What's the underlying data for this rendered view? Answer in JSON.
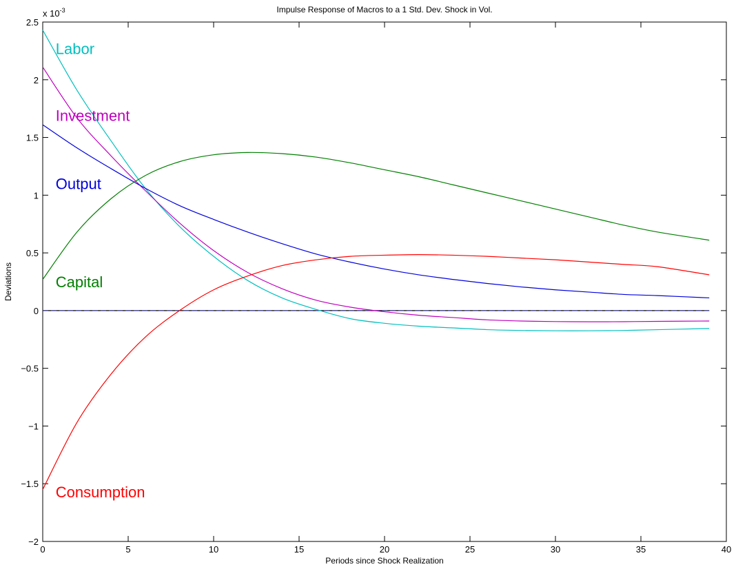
{
  "chart_data": {
    "type": "line",
    "title": "Impulse Response of Macros  to a 1 Std. Dev. Shock in Vol.",
    "xlabel": "Periods since Shock Realization",
    "ylabel": "Deviations",
    "y_exponent_label": "x 10",
    "y_exponent_power": "-3",
    "xlim": [
      0,
      40
    ],
    "ylim": [
      -2,
      2.5
    ],
    "xticks": [
      0,
      5,
      10,
      15,
      20,
      25,
      30,
      35,
      40
    ],
    "xtick_labels": [
      "0",
      "5",
      "10",
      "15",
      "20",
      "25",
      "30",
      "35",
      "40"
    ],
    "yticks": [
      -2,
      -1.5,
      -1,
      -0.5,
      0,
      0.5,
      1,
      1.5,
      2,
      2.5
    ],
    "ytick_labels": [
      "−2",
      "−1.5",
      "−1",
      "−0.5",
      "0",
      "0.5",
      "1",
      "1.5",
      "2",
      "2.5"
    ],
    "grid": false,
    "zero_line": 0,
    "x": [
      0,
      2,
      4,
      6,
      8,
      10,
      12,
      14,
      16,
      18,
      20,
      22,
      24,
      26,
      28,
      30,
      32,
      34,
      36,
      39
    ],
    "series": [
      {
        "name": "Labor",
        "color": "#00bfbf",
        "label_at": [
          1,
          2.27
        ],
        "values": [
          2.43,
          1.91,
          1.47,
          1.06,
          0.73,
          0.47,
          0.26,
          0.11,
          0.01,
          -0.07,
          -0.11,
          -0.135,
          -0.15,
          -0.165,
          -0.172,
          -0.175,
          -0.175,
          -0.172,
          -0.165,
          -0.155
        ]
      },
      {
        "name": "Investment",
        "color": "#bf00bf",
        "label_at": [
          1,
          1.69
        ],
        "values": [
          2.11,
          1.67,
          1.34,
          1.04,
          0.76,
          0.52,
          0.33,
          0.19,
          0.09,
          0.03,
          -0.01,
          -0.04,
          -0.06,
          -0.08,
          -0.09,
          -0.095,
          -0.097,
          -0.096,
          -0.093,
          -0.09
        ]
      },
      {
        "name": "Output",
        "color": "#0000dd",
        "label_at": [
          1,
          1.1
        ],
        "values": [
          1.61,
          1.41,
          1.23,
          1.06,
          0.91,
          0.79,
          0.68,
          0.58,
          0.49,
          0.42,
          0.36,
          0.31,
          0.27,
          0.235,
          0.205,
          0.18,
          0.16,
          0.14,
          0.13,
          0.11
        ]
      },
      {
        "name": "Capital",
        "color": "#007f00",
        "label_at": [
          1,
          0.25
        ],
        "values": [
          0.27,
          0.68,
          0.97,
          1.17,
          1.29,
          1.35,
          1.37,
          1.36,
          1.33,
          1.28,
          1.22,
          1.16,
          1.09,
          1.02,
          0.95,
          0.88,
          0.81,
          0.74,
          0.68,
          0.61
        ]
      },
      {
        "name": "Consumption",
        "color": "#ff0000",
        "label_at": [
          1,
          -1.57
        ],
        "values": [
          -1.55,
          -0.97,
          -0.55,
          -0.23,
          0.0,
          0.18,
          0.3,
          0.39,
          0.44,
          0.47,
          0.48,
          0.485,
          0.48,
          0.47,
          0.455,
          0.44,
          0.42,
          0.4,
          0.38,
          0.31
        ]
      }
    ]
  }
}
